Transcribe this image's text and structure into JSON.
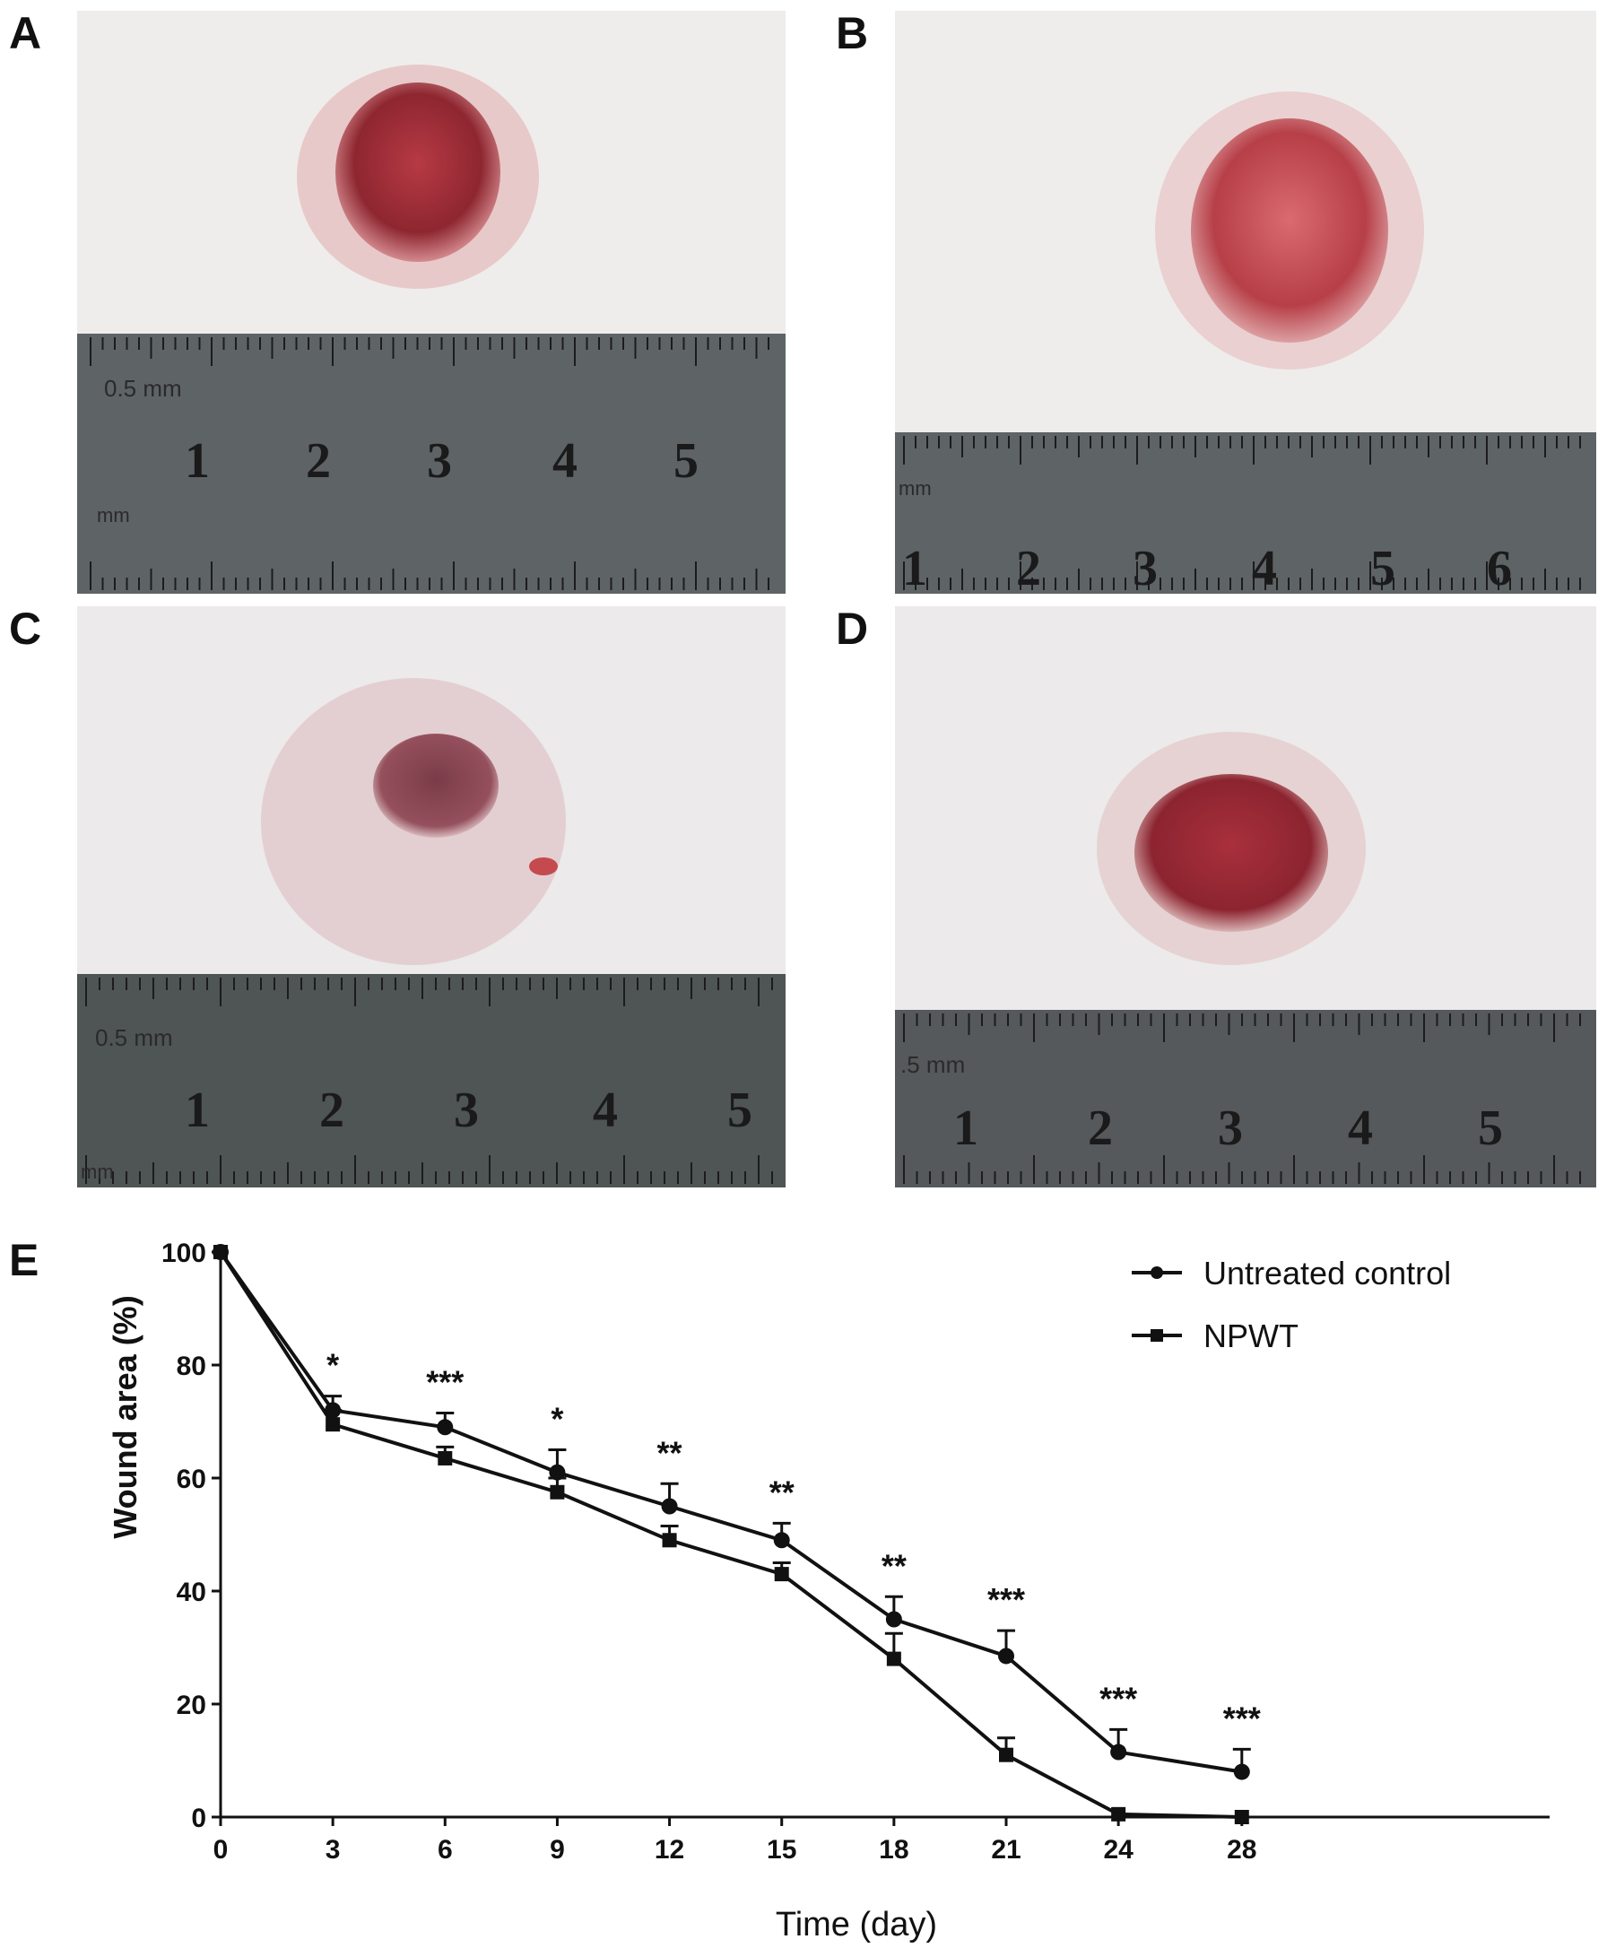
{
  "panels": [
    {
      "label": "A",
      "ruler": {
        "numbers": [
          "1",
          "2",
          "3",
          "4",
          "5"
        ],
        "scale_text": "0.5 mm",
        "unit_text": "mm"
      }
    },
    {
      "label": "B",
      "ruler": {
        "numbers": [
          "1",
          "2",
          "3",
          "4",
          "5",
          "6"
        ],
        "scale_text": "",
        "unit_text": "mm"
      }
    },
    {
      "label": "C",
      "ruler": {
        "numbers": [
          "1",
          "2",
          "3",
          "4",
          "5"
        ],
        "scale_text": "0.5 mm",
        "unit_text": "mm"
      }
    },
    {
      "label": "D",
      "ruler": {
        "numbers": [
          "1",
          "2",
          "3",
          "4",
          "5"
        ],
        "scale_text": ".5 mm",
        "unit_text": ""
      }
    },
    {
      "label": "E"
    }
  ],
  "colors": {
    "fur": "#f1efee",
    "wound": "#a3303a",
    "ruler": "#5b5f62",
    "ink": "#111111"
  },
  "chart_data": {
    "type": "line",
    "xlabel": "Time (day)",
    "ylabel": "Wound area (%)",
    "categories": [
      "0",
      "3",
      "6",
      "9",
      "12",
      "15",
      "18",
      "21",
      "24",
      "28"
    ],
    "ylim": [
      0,
      100
    ],
    "yticks": [
      "0",
      "20",
      "40",
      "60",
      "80",
      "100"
    ],
    "legend_position": "top-right",
    "series": [
      {
        "name": "Untreated control",
        "marker": "circle",
        "values": [
          100,
          72,
          69,
          61,
          55,
          49,
          35,
          28.5,
          11.5,
          8
        ],
        "error": [
          0,
          2.5,
          2.5,
          4,
          4,
          3,
          4,
          4.5,
          4,
          4
        ]
      },
      {
        "name": "NPWT",
        "marker": "square",
        "values": [
          100,
          69.5,
          63.5,
          57.5,
          49,
          43,
          28,
          11,
          0.5,
          0
        ],
        "error": [
          0,
          2.5,
          2,
          2.5,
          2.5,
          2,
          4.5,
          3,
          0,
          0
        ]
      }
    ],
    "significance": [
      "",
      "*",
      "***",
      "*",
      "**",
      "**",
      "**",
      "***",
      "***",
      "***"
    ]
  }
}
